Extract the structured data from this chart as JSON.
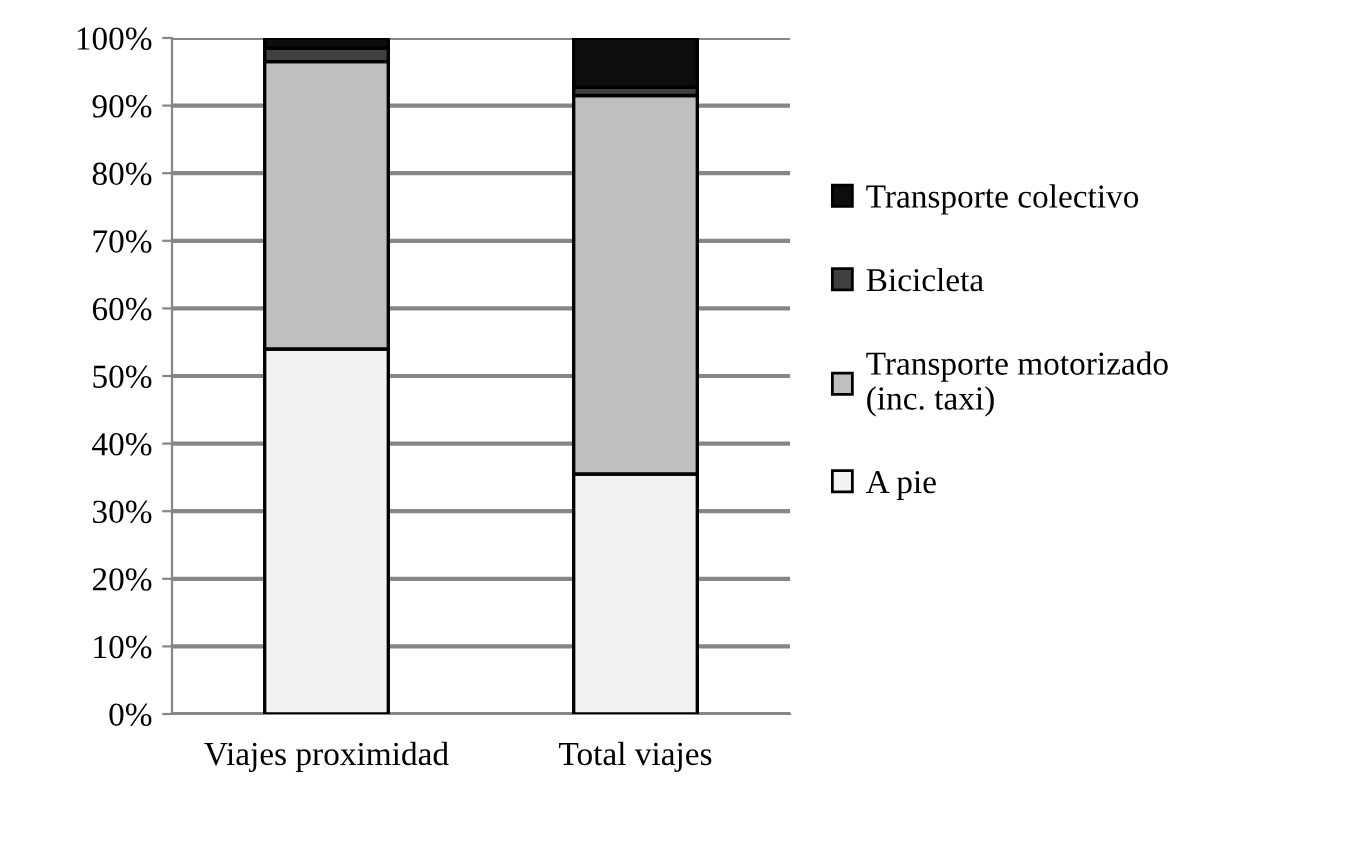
{
  "chart_data": {
    "type": "bar",
    "stacked": true,
    "categories": [
      "Viajes proximidad",
      "Total viajes"
    ],
    "series": [
      {
        "name": "A pie",
        "color": "#f2f2f2",
        "values": [
          54,
          35.5
        ]
      },
      {
        "name": "Transporte motorizado\n(inc. taxi)",
        "color": "#bfbfbf",
        "values": [
          42.5,
          56
        ]
      },
      {
        "name": "Bicicleta",
        "color": "#404040",
        "values": [
          2,
          1.2
        ]
      },
      {
        "name": "Transporte colectivo",
        "color": "#0d0d0d",
        "values": [
          1.5,
          7.3
        ]
      }
    ],
    "ylim": [
      0,
      100
    ],
    "yticks": [
      {
        "value": 0,
        "label": "0%"
      },
      {
        "value": 10,
        "label": "10%"
      },
      {
        "value": 20,
        "label": "20%"
      },
      {
        "value": 30,
        "label": "30%"
      },
      {
        "value": 40,
        "label": "40%"
      },
      {
        "value": 50,
        "label": "50%"
      },
      {
        "value": 60,
        "label": "60%"
      },
      {
        "value": 70,
        "label": "70%"
      },
      {
        "value": 80,
        "label": "80%"
      },
      {
        "value": 90,
        "label": "90%"
      },
      {
        "value": 100,
        "label": "100%"
      }
    ],
    "grid": "y",
    "legend": "right"
  }
}
